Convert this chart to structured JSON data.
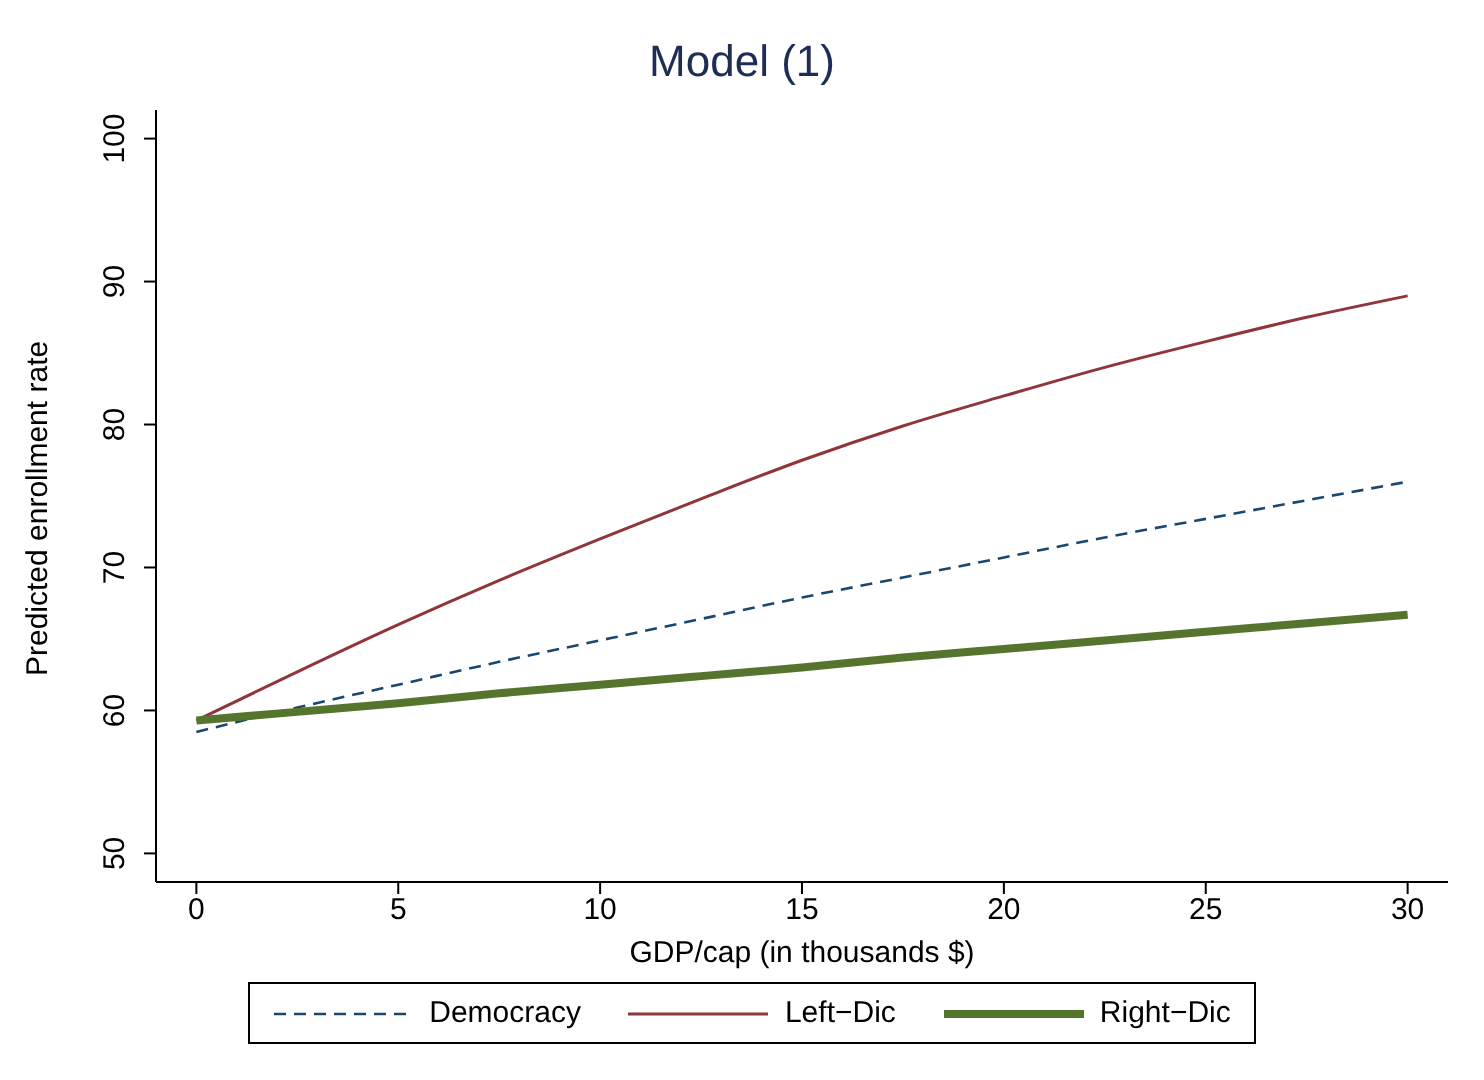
{
  "chart_data": {
    "type": "line",
    "title": "Model (1)",
    "xlabel": "GDP/cap (in thousands $)",
    "ylabel": "Predicted enrollment rate",
    "x": [
      0,
      2.5,
      5,
      7.5,
      10,
      12.5,
      15,
      17.5,
      20,
      22.5,
      25,
      27.5,
      30
    ],
    "series": [
      {
        "name": "Democracy",
        "color": "#1a476f",
        "line_style": "dashed",
        "values": [
          58.5,
          60.2,
          61.8,
          63.4,
          64.9,
          66.4,
          67.9,
          69.3,
          70.7,
          72.1,
          73.4,
          74.7,
          76
        ]
      },
      {
        "name": "Left−Dic",
        "color": "#90353b",
        "line_style": "solid",
        "values": [
          59.3,
          62.7,
          66,
          69.1,
          72,
          74.8,
          77.5,
          79.9,
          82,
          84,
          85.8,
          87.5,
          89
        ]
      },
      {
        "name": "Right−Dic",
        "color": "#55752f",
        "line_style": "solid",
        "values": [
          59.3,
          59.9,
          60.5,
          61.2,
          61.8,
          62.4,
          63,
          63.7,
          64.3,
          64.9,
          65.5,
          66.1,
          66.7
        ]
      }
    ],
    "xlim": [
      -1,
      31
    ],
    "xticks": [
      0,
      5,
      10,
      15,
      20,
      25,
      30
    ],
    "ylim": [
      48,
      102
    ],
    "yticks": [
      50,
      60,
      70,
      80,
      90,
      100
    ],
    "grid": false,
    "legend": "bottom",
    "marker": "none"
  }
}
